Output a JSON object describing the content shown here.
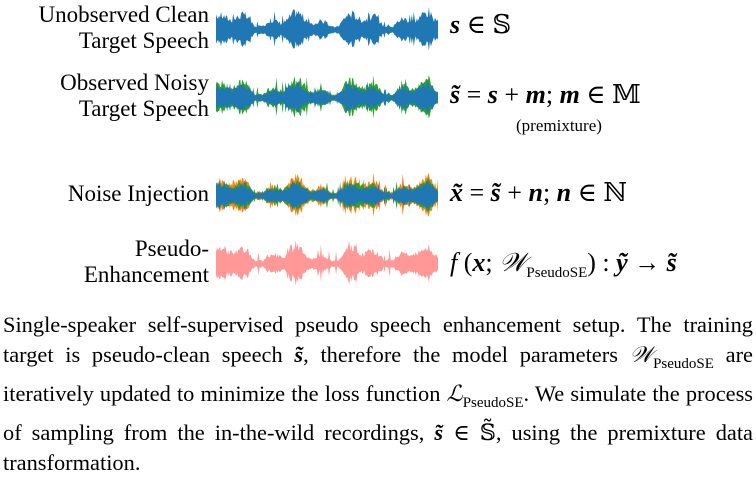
{
  "rows": [
    {
      "label_lines": [
        "Unobserved Clean",
        "Target Speech"
      ],
      "equation_parts": [
        "s",
        " ∈ 𝕊"
      ],
      "colors": [
        "#1f77b4"
      ]
    },
    {
      "label_lines": [
        "Observed Noisy",
        "Target Speech"
      ],
      "equation_parts": [
        "s̃",
        " = ",
        "s",
        " + ",
        "m",
        "; ",
        "m",
        " ∈ 𝕄"
      ],
      "note": "(premixture)",
      "colors": [
        "#2ca02c",
        "#1f77b4"
      ]
    },
    {
      "label_lines": [
        "Noise Injection"
      ],
      "equation_parts": [
        "x̃",
        " = ",
        "s̃",
        " + ",
        "n",
        "; ",
        "n",
        " ∈ ℕ"
      ],
      "colors": [
        "#ff7f0e",
        "#2ca02c",
        "#1f77b4"
      ]
    },
    {
      "label_lines": [
        "Pseudo-",
        "Enhancement"
      ],
      "equation_parts": [
        "f",
        " (",
        "x",
        "; ",
        "𝒲",
        "PseudoSE",
        ") : ",
        "ỹ",
        " → ",
        "s̃"
      ],
      "colors": [
        "#ff9896"
      ]
    }
  ],
  "caption": {
    "p1": "Single-speaker self-supervised pseudo speech enhancement setup. The training target is pseudo-clean speech ",
    "p1_sym": "s̃",
    "p2": ", therefore the model parameters ",
    "p2_sym": "𝒲",
    "p2_sub": "PseudoSE",
    "p3": " are iteratively updated to minimize the loss function ",
    "p3_sym": "ℒ",
    "p3_sub": "PseudoSE",
    "p4": ". We simulate the process of sampling from the in-the-wild recordings, ",
    "p4_sym": "s̃",
    "p4_mid": " ∈ ",
    "p4_set": "𝕊̃",
    "p5": ", using the premixture data transformation."
  }
}
